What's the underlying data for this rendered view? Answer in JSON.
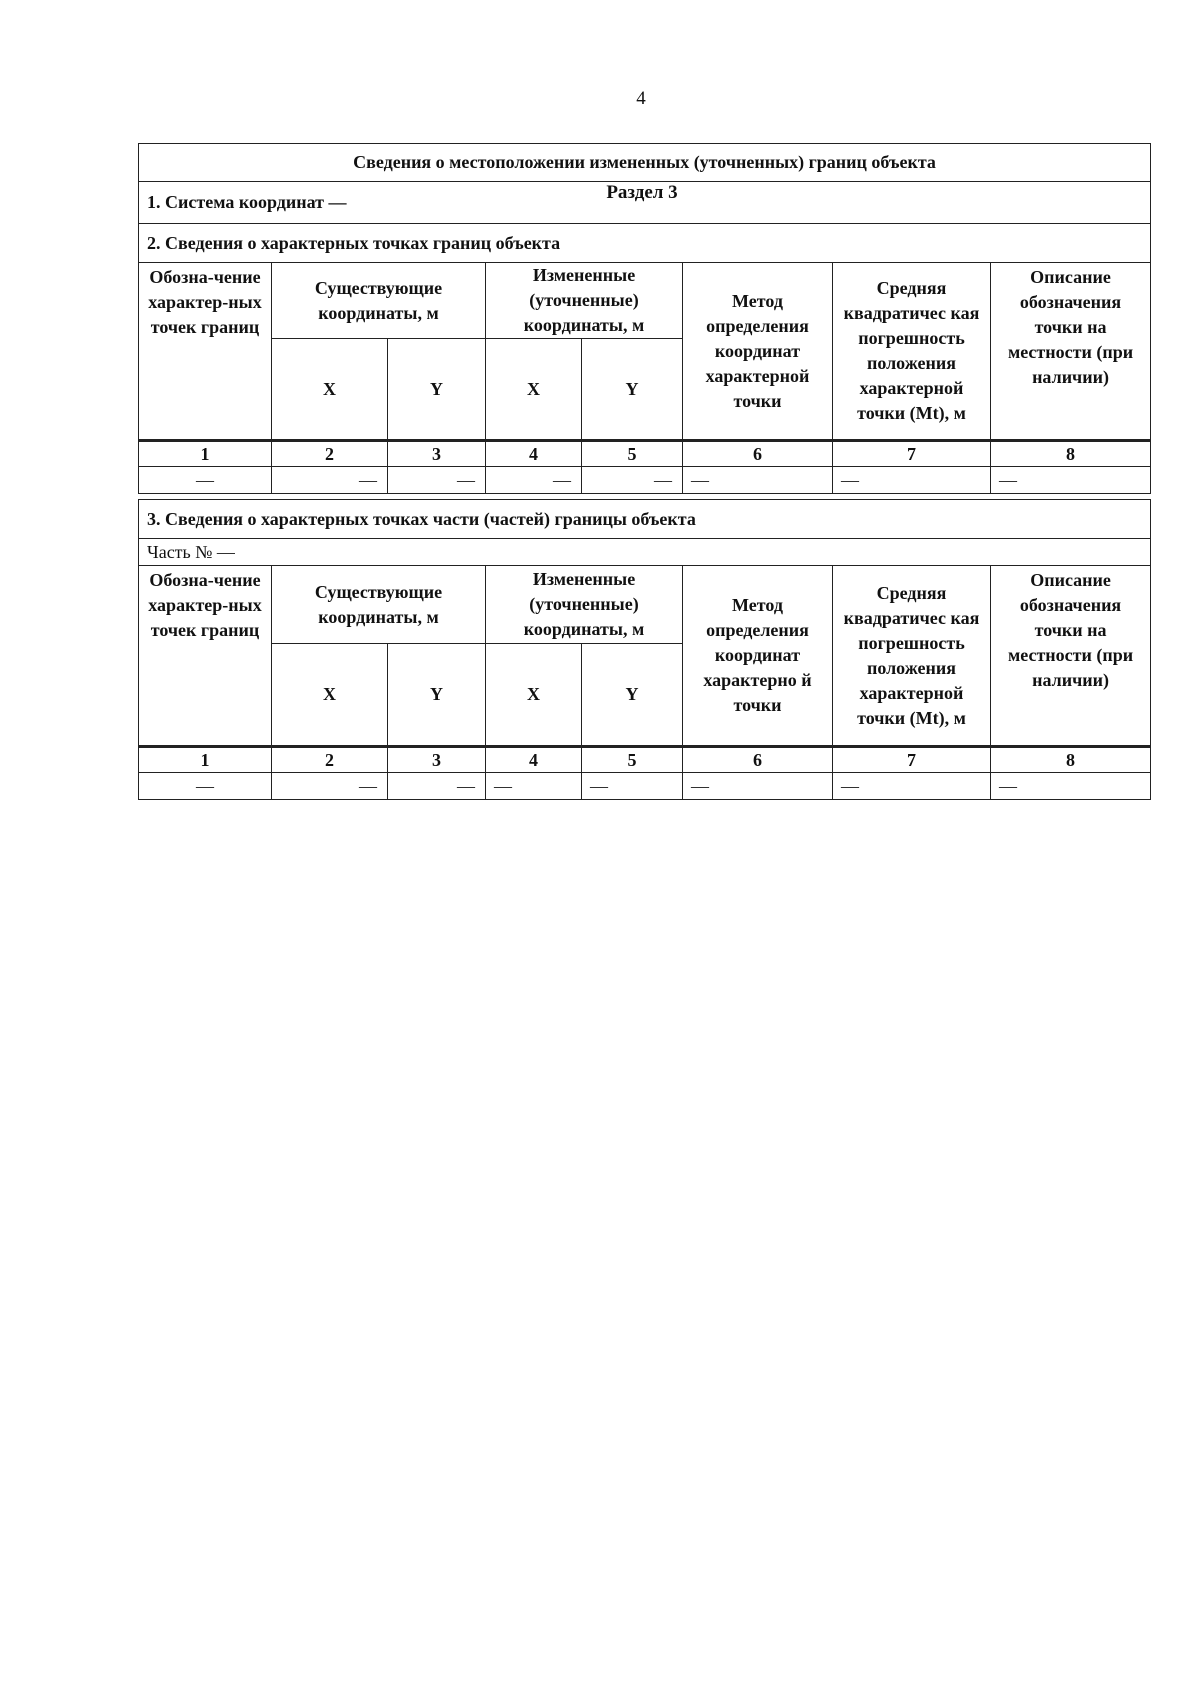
{
  "page_number": "4",
  "section_label": "Раздел 3",
  "table1": {
    "title": "Сведения о местоположении измененных (уточненных) границ объекта",
    "coord_system": "1. Система координат —",
    "subsection": "2. Сведения о характерных точках границ объекта",
    "headers": {
      "col1": "Обозна-чение характер-ных точек границ",
      "existing": "Существующие координаты, м",
      "changed": "Измененные (уточненные) координаты, м",
      "x": "X",
      "y": "Y",
      "method": "Метод определения координат характерной точки",
      "error": "Средняя квадратичес кая погрешность положения характерной точки (Mt), м",
      "description": "Описание обозначения точки на местности (при наличии)"
    },
    "numbers": [
      "1",
      "2",
      "3",
      "4",
      "5",
      "6",
      "7",
      "8"
    ],
    "rows": [
      [
        "—",
        "—",
        "—",
        "—",
        "—",
        "—",
        "—",
        "—"
      ]
    ]
  },
  "table2": {
    "subsection": "3. Сведения о характерных точках части (частей) границы объекта",
    "part": "Часть № —",
    "headers": {
      "col1": "Обозна-чение характер-ных точек границ",
      "existing": "Существующие координаты, м",
      "changed": "Измененные (уточненные) координаты, м",
      "x": "X",
      "y": "Y",
      "method": "Метод определения координат характерно й точки",
      "error": "Средняя квадратичес кая погрешность положения характерной точки (Mt), м",
      "description": "Описание обозначения точки на местности (при наличии)"
    },
    "numbers": [
      "1",
      "2",
      "3",
      "4",
      "5",
      "6",
      "7",
      "8"
    ],
    "rows": [
      [
        "—",
        "—",
        "—",
        "—",
        "—",
        "—",
        "—",
        "—"
      ]
    ]
  }
}
